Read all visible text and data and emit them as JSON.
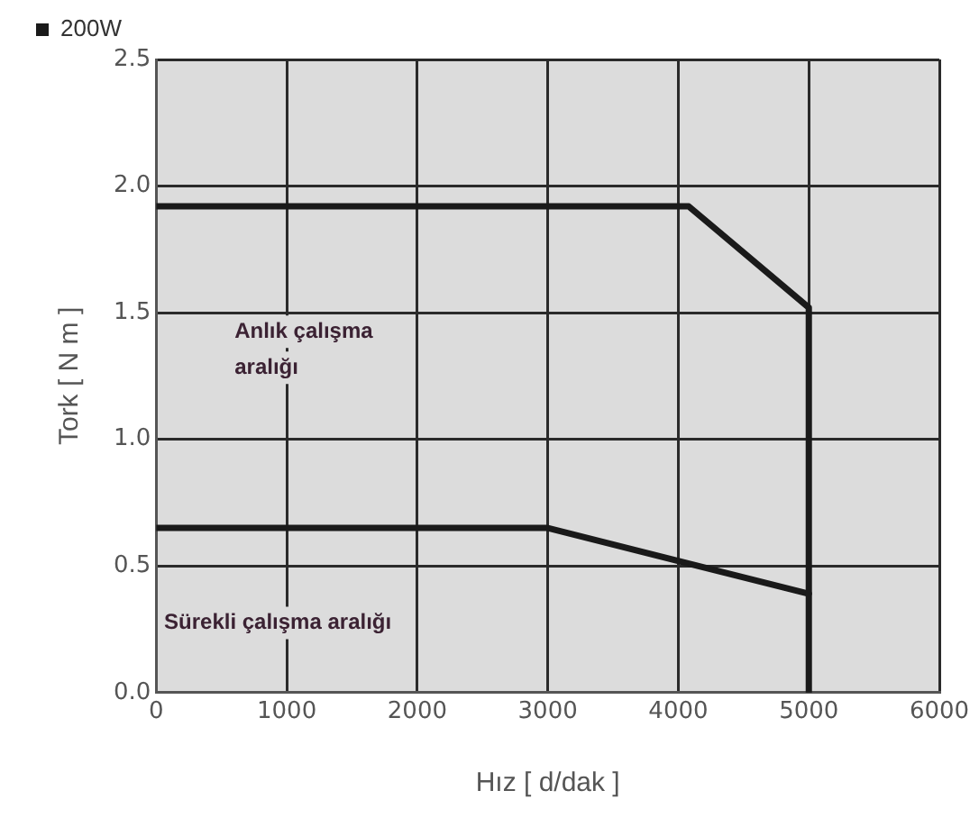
{
  "chart_data": {
    "type": "line",
    "xlabel": "Hız [ d/dak ]",
    "ylabel": "Tork [ N m ]",
    "xlim": [
      0,
      6000
    ],
    "xticks": [
      0,
      1000,
      2000,
      3000,
      4000,
      5000,
      6000
    ],
    "ylim": [
      0,
      2.5
    ],
    "yticks": [
      {
        "value": 0,
        "label": "0.0"
      },
      {
        "value": 0.5,
        "label": "0.5"
      },
      {
        "value": 1,
        "label": "1.0"
      },
      {
        "value": 1.5,
        "label": "1.5"
      },
      {
        "value": 2,
        "label": "2.0"
      },
      {
        "value": 2.5,
        "label": "2.5"
      }
    ],
    "grid": true,
    "legend": "top left",
    "marker": "none",
    "line_style": "solid",
    "series": [
      {
        "name": "200W",
        "color": "#1a1a1a",
        "x": [
          0,
          4080,
          5000,
          5000
        ],
        "values": [
          1.92,
          1.92,
          1.52,
          0
        ]
      },
      {
        "color": "#1a1a1a",
        "x": [
          0,
          3000,
          5000
        ],
        "values": [
          0.65,
          0.65,
          0.39
        ]
      }
    ],
    "annotations": [
      "Anlık çalışma aralığı",
      "Sürekli çalışma aralığı"
    ]
  }
}
